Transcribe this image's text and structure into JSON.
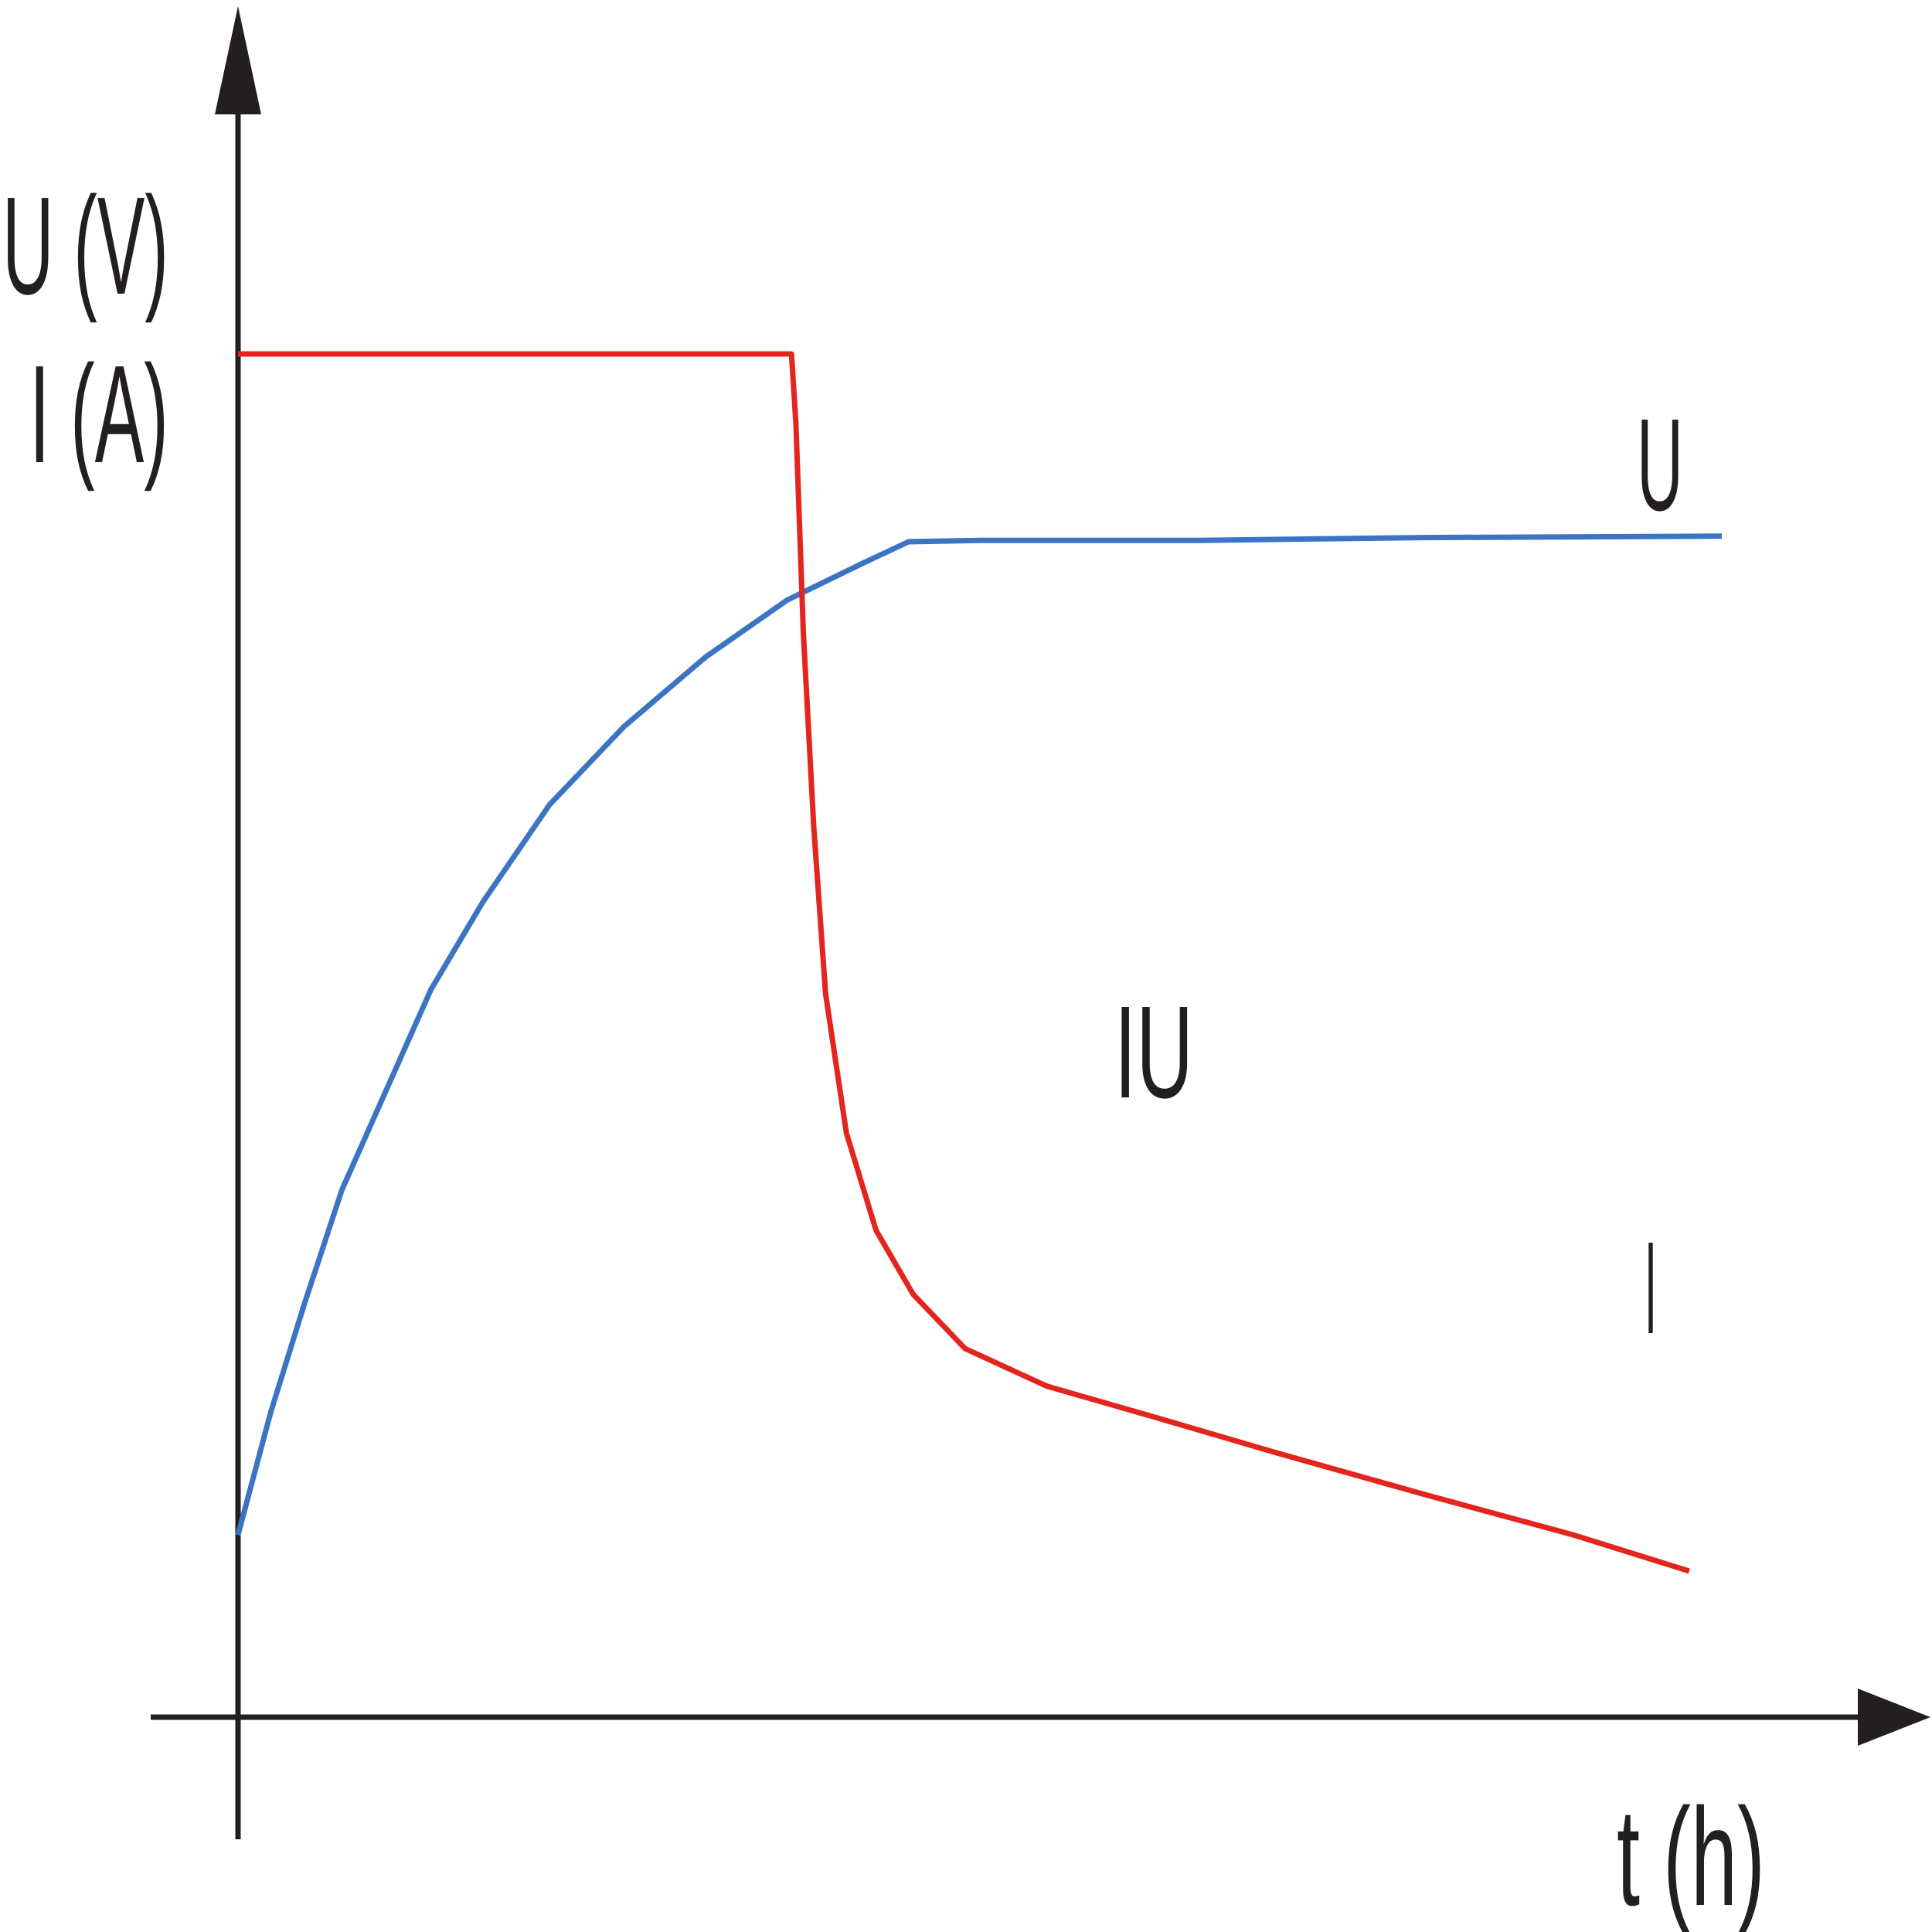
{
  "chart_data": {
    "type": "line",
    "ylabel_lines": [
      "U (V)",
      "I (A)"
    ],
    "xlabel": "t (h)",
    "annotation": "IU",
    "x_range": [
      0,
      1
    ],
    "y_range": [
      0,
      1
    ],
    "series": [
      {
        "name": "U",
        "color": "#3a74c3",
        "points": [
          [
            0.0,
            0.131
          ],
          [
            0.022,
            0.219
          ],
          [
            0.045,
            0.298
          ],
          [
            0.07,
            0.379
          ],
          [
            0.1,
            0.451
          ],
          [
            0.13,
            0.523
          ],
          [
            0.165,
            0.586
          ],
          [
            0.21,
            0.656
          ],
          [
            0.26,
            0.712
          ],
          [
            0.315,
            0.762
          ],
          [
            0.37,
            0.803
          ],
          [
            0.42,
            0.829
          ],
          [
            0.452,
            0.845
          ],
          [
            0.5,
            0.846
          ],
          [
            0.65,
            0.846
          ],
          [
            0.8,
            0.848
          ],
          [
            1.0,
            0.849
          ]
        ]
      },
      {
        "name": "I",
        "color": "#e4251d",
        "points": [
          [
            0.0,
            0.98
          ],
          [
            0.373,
            0.98
          ],
          [
            0.376,
            0.93
          ],
          [
            0.381,
            0.78
          ],
          [
            0.388,
            0.64
          ],
          [
            0.396,
            0.52
          ],
          [
            0.41,
            0.42
          ],
          [
            0.43,
            0.35
          ],
          [
            0.455,
            0.304
          ],
          [
            0.49,
            0.265
          ],
          [
            0.545,
            0.238
          ],
          [
            0.62,
            0.215
          ],
          [
            0.7,
            0.19
          ],
          [
            0.8,
            0.16
          ],
          [
            0.9,
            0.131
          ],
          [
            0.978,
            0.105
          ]
        ]
      }
    ]
  }
}
